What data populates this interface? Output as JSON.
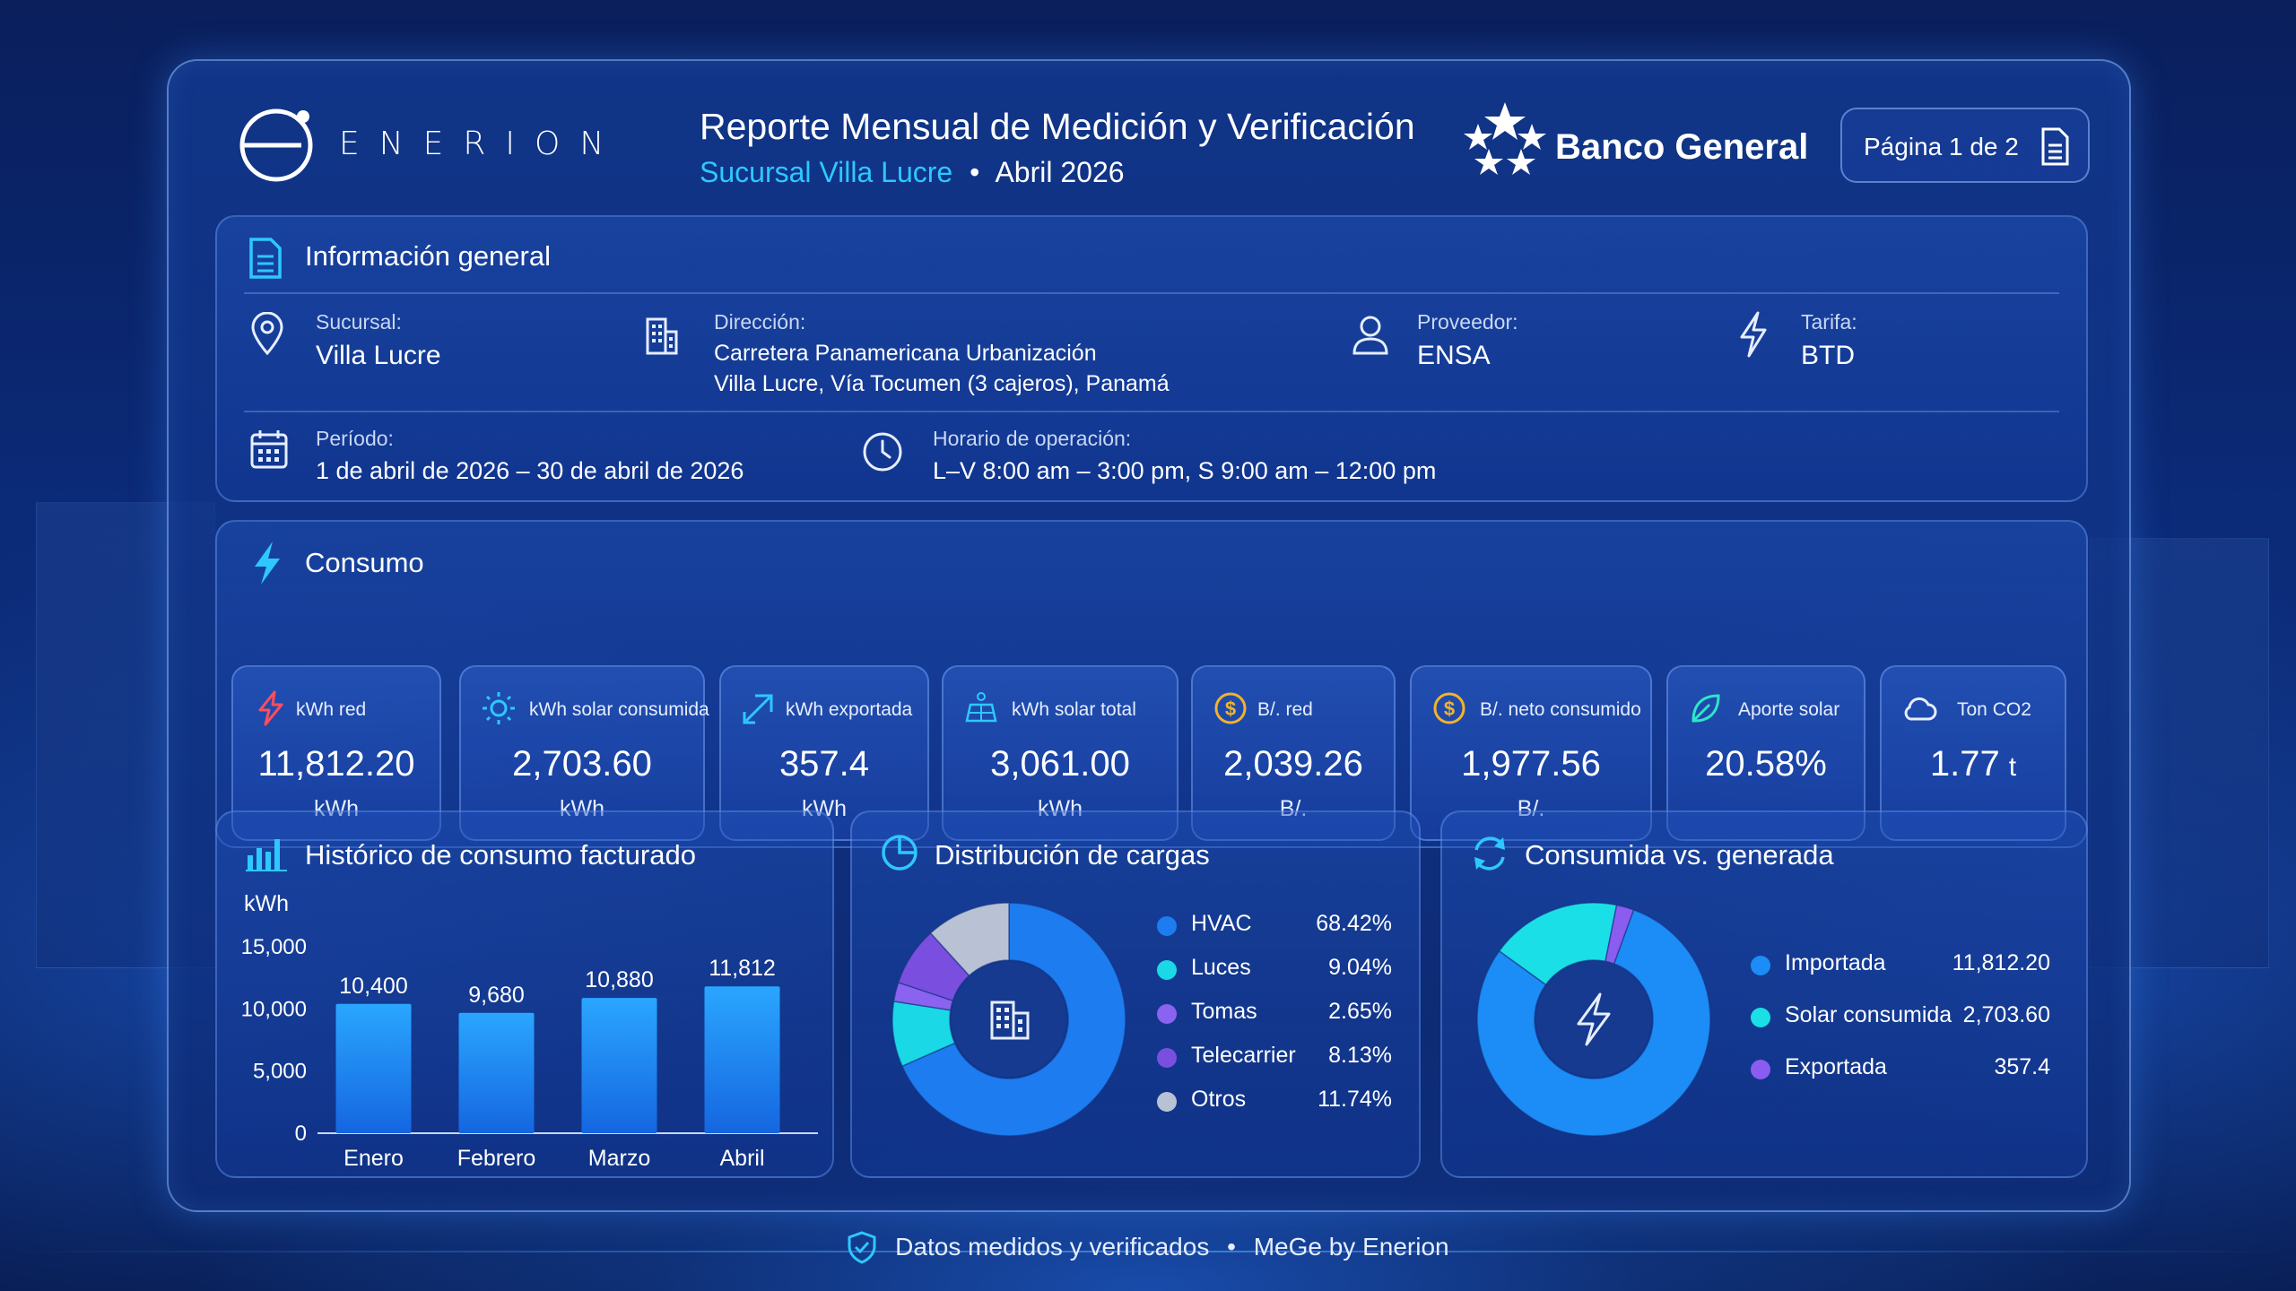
{
  "header": {
    "brand": "ENERION",
    "title": "Reporte Mensual de Medición y Verificación",
    "branch": "Sucursal Villa Lucre",
    "separator": "•",
    "period": "Abril 2026",
    "client": "Banco General",
    "page_indicator": "Página 1 de 2"
  },
  "general": {
    "title": "Información general",
    "sucursal_label": "Sucursal:",
    "sucursal_value": "Villa Lucre",
    "direccion_label": "Dirección:",
    "direccion_line1": "Carretera Panamericana Urbanización",
    "direccion_line2": "Villa Lucre, Vía Tocumen (3 cajeros), Panamá",
    "proveedor_label": "Proveedor:",
    "proveedor_value": "ENSA",
    "tarifa_label": "Tarifa:",
    "tarifa_value": "BTD",
    "periodo_label": "Período:",
    "periodo_value": "1 de abril de 2026 – 30 de abril de 2026",
    "horario_label": "Horario de operación:",
    "horario_value": "L–V 8:00 am – 3:00 pm, S 9:00 am – 12:00 pm"
  },
  "consumo": {
    "title": "Consumo",
    "kpis": [
      {
        "label": "kWh red",
        "value": "11,812.20",
        "unit": "kWh",
        "icon": "bolt-icon"
      },
      {
        "label": "kWh solar consumida",
        "value": "2,703.60",
        "unit": "kWh",
        "icon": "sun-icon"
      },
      {
        "label": "kWh exportada",
        "value": "357.4",
        "unit": "kWh",
        "icon": "export-arrow-icon"
      },
      {
        "label": "kWh solar total",
        "value": "3,061.00",
        "unit": "kWh",
        "icon": "solar-panel-icon"
      },
      {
        "label": "B/. red",
        "value": "2,039.26",
        "unit": "B/.",
        "icon": "dollar-coin-icon"
      },
      {
        "label": "B/. neto consumido",
        "value": "1,977.56",
        "unit": "B/.",
        "icon": "dollar-coin-icon"
      },
      {
        "label": "Aporte solar",
        "value": "20.58%",
        "unit": "",
        "icon": "leaf-icon"
      },
      {
        "label": "Ton CO2",
        "value": "1.77",
        "unit_inline": "t",
        "icon": "cloud-icon"
      }
    ]
  },
  "historico": {
    "title": "Histórico de consumo facturado",
    "chart_data": {
      "type": "bar",
      "ylabel": "kWh",
      "categories": [
        "Enero",
        "Febrero",
        "Marzo",
        "Abril"
      ],
      "values": [
        10400,
        9680,
        10880,
        11812
      ],
      "value_labels": [
        "10,400",
        "9,680",
        "10,880",
        "11,812"
      ],
      "yticks": [
        "15,000",
        "10,000",
        "5,000",
        "0"
      ],
      "ylim": [
        0,
        15000
      ],
      "color": "#1e90ff"
    }
  },
  "distribucion": {
    "title": "Distribución de cargas",
    "chart_data": {
      "type": "pie",
      "categories": [
        "HVAC",
        "Luces",
        "Tomas",
        "Telecarrier",
        "Otros"
      ],
      "values": [
        68.42,
        9.04,
        2.65,
        8.13,
        11.74
      ],
      "labels": [
        "68.42%",
        "9.04%",
        "2.65%",
        "8.13%",
        "11.74%"
      ],
      "colors": [
        "#1c7cf0",
        "#1ad8e6",
        "#8a63f0",
        "#7a4fe0",
        "#b9c2d4"
      ]
    }
  },
  "consumida_generada": {
    "title": "Consumida vs. generada",
    "chart_data": {
      "type": "pie",
      "categories": [
        "Importada",
        "Solar consumida",
        "Exportada"
      ],
      "values": [
        11812.2,
        2703.6,
        357.4
      ],
      "labels": [
        "11,812.20",
        "2,703.60",
        "357.4"
      ],
      "colors": [
        "#1c8cf6",
        "#1adfe6",
        "#8b5cf0"
      ]
    }
  },
  "footer": {
    "text": "Datos medidos y verificados",
    "separator": "•",
    "brand": "MeGe by Enerion"
  }
}
